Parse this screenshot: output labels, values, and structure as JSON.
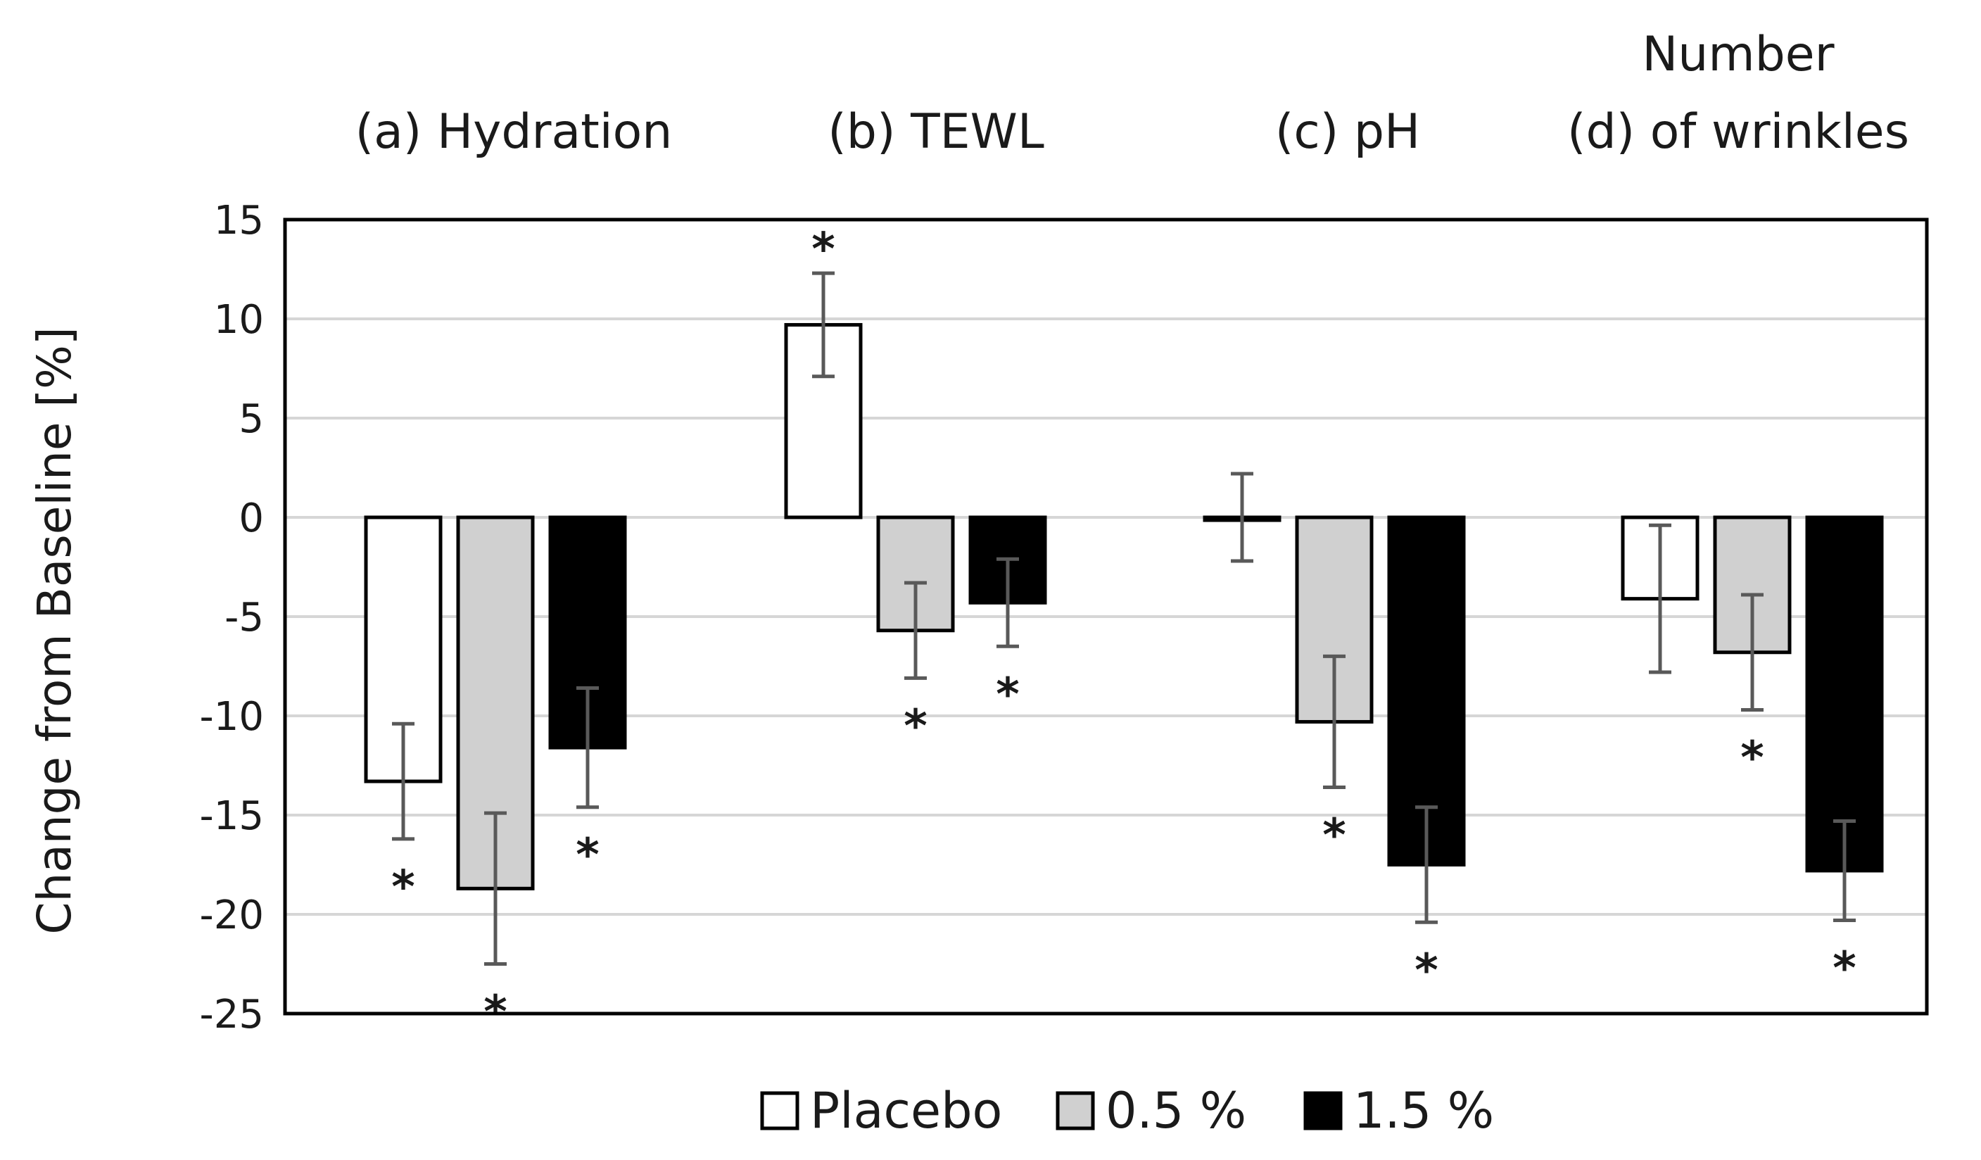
{
  "chart_data": {
    "type": "bar",
    "title": "",
    "xlabel": "",
    "ylabel": "Change from Baseline [%]",
    "ylim": [
      -25,
      15
    ],
    "yticks": [
      15,
      10,
      5,
      0,
      -5,
      -10,
      -15,
      -20,
      -25
    ],
    "grid": true,
    "legend_position": "bottom",
    "groups": [
      {
        "lines": [
          "(a) Hydration"
        ]
      },
      {
        "lines": [
          "(b) TEWL"
        ]
      },
      {
        "lines": [
          "(c) pH"
        ]
      },
      {
        "lines": [
          "Number",
          "(d) of wrinkles"
        ]
      }
    ],
    "series": [
      {
        "name": "Placebo",
        "color": "#ffffff",
        "values": [
          -13.3,
          9.7,
          0.0,
          -4.1
        ],
        "errors": [
          2.9,
          2.6,
          2.2,
          3.7
        ],
        "significant": [
          true,
          true,
          false,
          false
        ],
        "star_side": [
          "below",
          "above",
          "none",
          "none"
        ]
      },
      {
        "name": "0.5 %",
        "color": "#d0d0d0",
        "values": [
          -18.7,
          -5.7,
          -10.3,
          -6.8
        ],
        "errors": [
          3.8,
          2.4,
          3.3,
          2.9
        ],
        "significant": [
          true,
          true,
          true,
          true
        ],
        "star_side": [
          "below",
          "below",
          "below",
          "below"
        ]
      },
      {
        "name": "1.5 %",
        "color": "#000000",
        "values": [
          -11.6,
          -4.3,
          -17.5,
          -17.8
        ],
        "errors": [
          3.0,
          2.2,
          2.9,
          2.5
        ],
        "significant": [
          true,
          true,
          true,
          true
        ],
        "star_side": [
          "below",
          "below",
          "below",
          "below"
        ]
      }
    ],
    "significance_marker": "*"
  }
}
